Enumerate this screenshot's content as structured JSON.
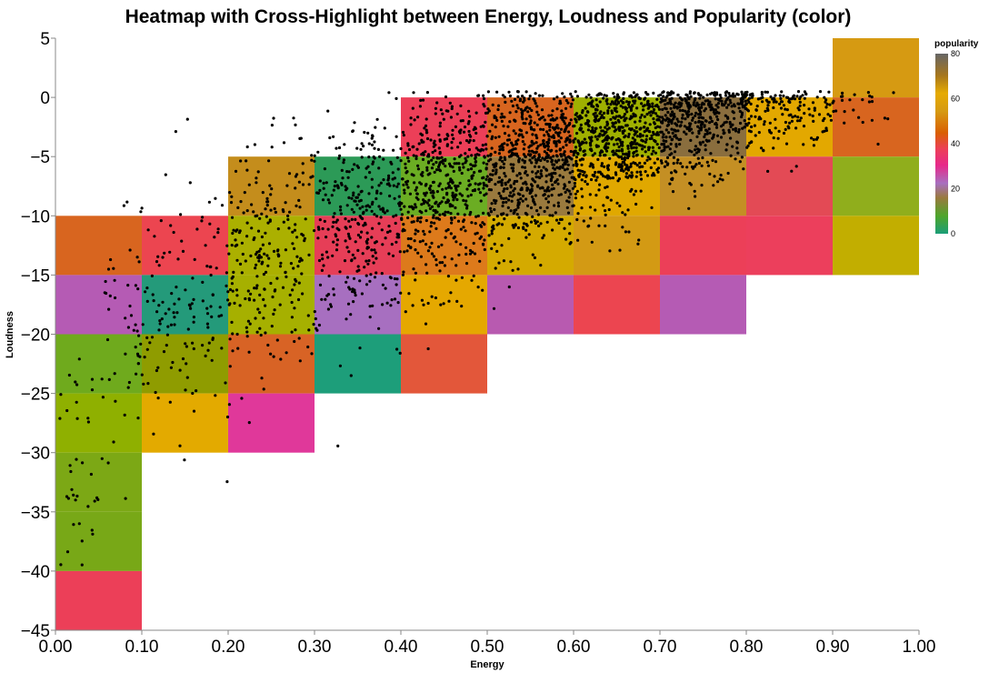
{
  "chart_data": {
    "type": "heatmap",
    "title": "Heatmap with Cross-Highlight between Energy, Loudness and Popularity (color)",
    "xlabel": "Energy",
    "ylabel": "Loudness",
    "xlim": [
      0,
      1
    ],
    "ylim": [
      -45,
      5
    ],
    "x_bin_step": 0.1,
    "y_bin_step": 5,
    "x_ticks": [
      "0.00",
      "0.10",
      "0.20",
      "0.30",
      "0.40",
      "0.50",
      "0.60",
      "0.70",
      "0.80",
      "0.90",
      "1.00"
    ],
    "y_ticks": [
      "5",
      "0",
      "−5",
      "−10",
      "−15",
      "−20",
      "−25",
      "−30",
      "−35",
      "−40",
      "−45"
    ],
    "legend": {
      "title": "popularity",
      "ticks": [
        "80",
        "60",
        "40",
        "20",
        "0"
      ],
      "domain": [
        0,
        80
      ],
      "placement": "top-right"
    },
    "cells": [
      {
        "x": 0.0,
        "y": -10,
        "color": "#d8651f"
      },
      {
        "x": 0.0,
        "y": -15,
        "color": "#b55bb4"
      },
      {
        "x": 0.0,
        "y": -20,
        "color": "#6faa1d"
      },
      {
        "x": 0.0,
        "y": -25,
        "color": "#8fb000"
      },
      {
        "x": 0.0,
        "y": -30,
        "color": "#7ca815"
      },
      {
        "x": 0.0,
        "y": -35,
        "color": "#78a817"
      },
      {
        "x": 0.0,
        "y": -40,
        "color": "#ec3f58"
      },
      {
        "x": 0.1,
        "y": -10,
        "color": "#ec4550"
      },
      {
        "x": 0.1,
        "y": -15,
        "color": "#249a7a"
      },
      {
        "x": 0.1,
        "y": -20,
        "color": "#8f9c00"
      },
      {
        "x": 0.1,
        "y": -25,
        "color": "#e3aa00"
      },
      {
        "x": 0.2,
        "y": -5,
        "color": "#c48d1c"
      },
      {
        "x": 0.2,
        "y": -10,
        "color": "#abb000"
      },
      {
        "x": 0.2,
        "y": -15,
        "color": "#a6b000"
      },
      {
        "x": 0.2,
        "y": -20,
        "color": "#d86325"
      },
      {
        "x": 0.2,
        "y": -25,
        "color": "#e0389a"
      },
      {
        "x": 0.3,
        "y": -5,
        "color": "#2c9a57"
      },
      {
        "x": 0.3,
        "y": -10,
        "color": "#e63e57"
      },
      {
        "x": 0.3,
        "y": -15,
        "color": "#a76fc0"
      },
      {
        "x": 0.3,
        "y": -20,
        "color": "#1d9e7a"
      },
      {
        "x": 0.4,
        "y": 0,
        "color": "#ec3f58"
      },
      {
        "x": 0.4,
        "y": -5,
        "color": "#6bad23"
      },
      {
        "x": 0.4,
        "y": -10,
        "color": "#dd7a1b"
      },
      {
        "x": 0.4,
        "y": -15,
        "color": "#e5a800"
      },
      {
        "x": 0.4,
        "y": -20,
        "color": "#e3573a"
      },
      {
        "x": 0.5,
        "y": 0,
        "color": "#d8651f"
      },
      {
        "x": 0.5,
        "y": -5,
        "color": "#9a7a3e"
      },
      {
        "x": 0.5,
        "y": -10,
        "color": "#d4aa00"
      },
      {
        "x": 0.5,
        "y": -15,
        "color": "#b85ab0"
      },
      {
        "x": 0.6,
        "y": 0,
        "color": "#9fb000"
      },
      {
        "x": 0.6,
        "y": -5,
        "color": "#e0a800"
      },
      {
        "x": 0.6,
        "y": -10,
        "color": "#d39a14"
      },
      {
        "x": 0.6,
        "y": -15,
        "color": "#ec4550"
      },
      {
        "x": 0.7,
        "y": 0,
        "color": "#8a6e3e"
      },
      {
        "x": 0.7,
        "y": -5,
        "color": "#c48f24"
      },
      {
        "x": 0.7,
        "y": -10,
        "color": "#ec3f58"
      },
      {
        "x": 0.7,
        "y": -15,
        "color": "#b55bb4"
      },
      {
        "x": 0.8,
        "y": 0,
        "color": "#e3a800"
      },
      {
        "x": 0.8,
        "y": -5,
        "color": "#e34a55"
      },
      {
        "x": 0.8,
        "y": -10,
        "color": "#ec3f5c"
      },
      {
        "x": 0.9,
        "y": 5,
        "color": "#d69a12"
      },
      {
        "x": 0.9,
        "y": 0,
        "color": "#d8651f"
      },
      {
        "x": 0.9,
        "y": -5,
        "color": "#90ae1c"
      },
      {
        "x": 0.9,
        "y": -10,
        "color": "#c2ae00"
      }
    ],
    "point_color": "#000000"
  }
}
